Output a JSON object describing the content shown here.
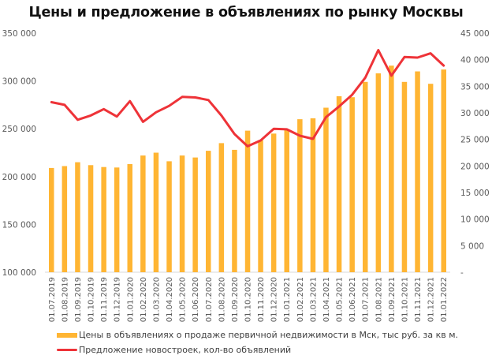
{
  "title": "Цены и предложение в объявлениях по рынку Москвы",
  "colors": {
    "bar": "#FFB533",
    "line": "#EE3338",
    "axis_text": "#595959",
    "axis_line": "#D9D9D9"
  },
  "legend": {
    "bar_label": "Цены в объявлениях о продаже первичной недвижимости в Мск, тыс руб. за кв м.",
    "line_label": "Предложение новостроек, кол-во объявлений"
  },
  "left_axis": {
    "ticks": [
      "350 000",
      "300 000",
      "250 000",
      "200 000",
      "150 000",
      "100 000"
    ]
  },
  "right_axis": {
    "ticks": [
      "45 000",
      "40 000",
      "35 000",
      "30 000",
      "25 000",
      "20 000",
      "15 000",
      "10 000",
      "5 000",
      "-"
    ]
  },
  "chart_data": {
    "type": "bar+line",
    "title": "Цены и предложение в объявлениях по рынку Москвы",
    "xlabel": "",
    "ylabel_left": "",
    "ylabel_right": "",
    "ylim_left": [
      100000,
      350000
    ],
    "ylim_right": [
      0,
      45000
    ],
    "grid": false,
    "legend_position": "bottom",
    "categories": [
      "01.07.2019",
      "01.08.2019",
      "01.09.2019",
      "01.10.2019",
      "01.11.2019",
      "01.12.2019",
      "01.01.2020",
      "01.02.2020",
      "01.03.2020",
      "01.04.2020",
      "01.05.2020",
      "01.06.2020",
      "01.07.2020",
      "01.08.2020",
      "01.09.2020",
      "01.10.2020",
      "01.11.2020",
      "01.12.2020",
      "01.01.2021",
      "01.02.2021",
      "01.03.2021",
      "01.04.2021",
      "01.05.2021",
      "01.06.2021",
      "01.07.2021",
      "01.08.2021",
      "01.09.2021",
      "01.10.2021",
      "01.11.2021",
      "01.12.2021",
      "01.01.2022"
    ],
    "series": [
      {
        "name": "Цены в объявлениях о продаже первичной недвижимости в Мск, тыс руб. за кв м.",
        "type": "bar",
        "axis": "left",
        "values": [
          209000,
          211000,
          215000,
          212000,
          210000,
          209500,
          213000,
          222000,
          225000,
          216000,
          222000,
          220000,
          227000,
          235000,
          228000,
          248000,
          238000,
          245000,
          248500,
          260000,
          261000,
          272000,
          284000,
          283000,
          299000,
          308000,
          316000,
          299000,
          310000,
          297000,
          312000
        ]
      },
      {
        "name": "Предложение новостроек, кол-во объявлений",
        "type": "line",
        "axis": "right",
        "values": [
          32000,
          31500,
          28700,
          29500,
          30700,
          29300,
          32200,
          28300,
          30100,
          31300,
          33000,
          32900,
          32400,
          29500,
          26000,
          23700,
          24800,
          27000,
          26900,
          25700,
          25100,
          29200,
          31200,
          33400,
          36600,
          41800,
          37000,
          40500,
          40400,
          41200,
          38900
        ]
      }
    ]
  }
}
